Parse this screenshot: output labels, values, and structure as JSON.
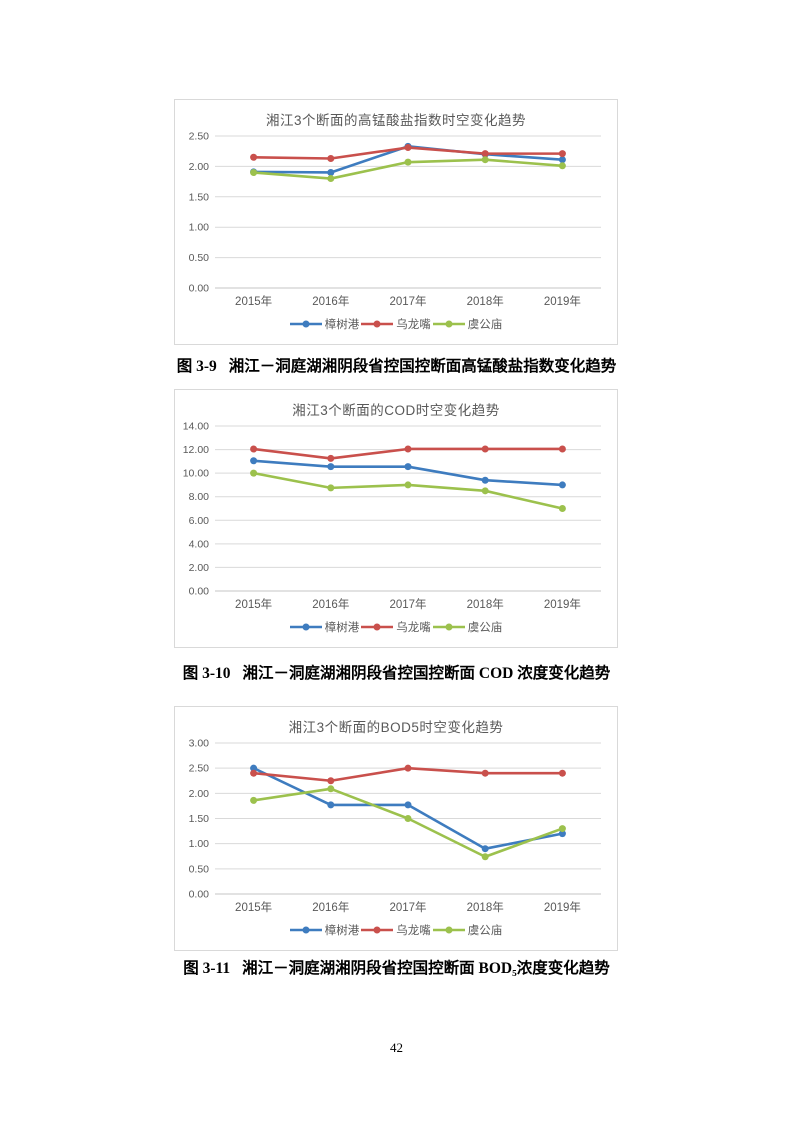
{
  "page": {
    "number": "42"
  },
  "chart_data": [
    {
      "type": "line",
      "title": "湘江3个断面的高锰酸盐指数时空变化趋势",
      "caption_label": "图 3-9",
      "caption_text": "湘江－洞庭湖湘阴段省控国控断面高锰酸盐指数变化趋势",
      "categories": [
        "2015年",
        "2016年",
        "2017年",
        "2018年",
        "2019年"
      ],
      "xlabel": "",
      "ylabel": "",
      "ylim": [
        0,
        2.5
      ],
      "ytick_step": 0.5,
      "tick_decimals": 2,
      "grid": true,
      "legend_position": "bottom",
      "series": [
        {
          "name": "樟树港",
          "color": "#3E7CBF",
          "values": [
            1.91,
            1.9,
            2.33,
            2.2,
            2.11
          ]
        },
        {
          "name": "乌龙嘴",
          "color": "#C9504C",
          "values": [
            2.15,
            2.13,
            2.31,
            2.21,
            2.21
          ]
        },
        {
          "name": "虞公庙",
          "color": "#9CC14D",
          "values": [
            1.9,
            1.8,
            2.07,
            2.11,
            2.01
          ]
        }
      ]
    },
    {
      "type": "line",
      "title": "湘江3个断面的COD时空变化趋势",
      "caption_label": "图 3-10",
      "caption_text": "湘江－洞庭湖湘阴段省控国控断面 COD 浓度变化趋势",
      "categories": [
        "2015年",
        "2016年",
        "2017年",
        "2018年",
        "2019年"
      ],
      "xlabel": "",
      "ylabel": "",
      "ylim": [
        0,
        14
      ],
      "ytick_step": 2,
      "tick_decimals": 2,
      "grid": true,
      "legend_position": "bottom",
      "series": [
        {
          "name": "樟树港",
          "color": "#3E7CBF",
          "values": [
            11.05,
            10.55,
            10.55,
            9.4,
            9.0
          ]
        },
        {
          "name": "乌龙嘴",
          "color": "#C9504C",
          "values": [
            12.05,
            11.25,
            12.05,
            12.05,
            12.05
          ]
        },
        {
          "name": "虞公庙",
          "color": "#9CC14D",
          "values": [
            10.0,
            8.75,
            9.0,
            8.5,
            7.0
          ]
        }
      ]
    },
    {
      "type": "line",
      "title": "湘江3个断面的BOD5时空变化趋势",
      "caption_label": "图 3-11",
      "caption_text": "湘江－洞庭湖湘阴段省控国控断面 BOD₅浓度变化趋势",
      "categories": [
        "2015年",
        "2016年",
        "2017年",
        "2018年",
        "2019年"
      ],
      "xlabel": "",
      "ylabel": "",
      "ylim": [
        0,
        3
      ],
      "ytick_step": 0.5,
      "tick_decimals": 2,
      "grid": true,
      "legend_position": "bottom",
      "series": [
        {
          "name": "樟树港",
          "color": "#3E7CBF",
          "values": [
            2.5,
            1.77,
            1.77,
            0.9,
            1.2
          ]
        },
        {
          "name": "乌龙嘴",
          "color": "#C9504C",
          "values": [
            2.4,
            2.25,
            2.5,
            2.4,
            2.4
          ]
        },
        {
          "name": "虞公庙",
          "color": "#9CC14D",
          "values": [
            1.86,
            2.09,
            1.5,
            0.74,
            1.3
          ]
        }
      ]
    }
  ],
  "style": {
    "grid_color": "#d9d9d9",
    "axis_color": "#c6c6c6",
    "tick_text_color": "#595959"
  }
}
